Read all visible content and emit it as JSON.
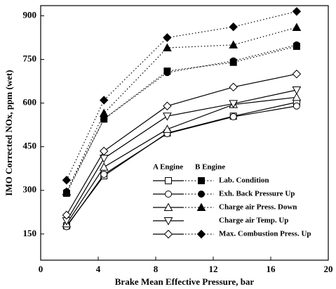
{
  "chart_data": {
    "type": "line",
    "x_label": "Brake Mean Effective Pressure, bar",
    "y_label": "IMO Corrected NOx, ppm (wet)",
    "x": [
      1.8,
      4.4,
      8.8,
      13.4,
      17.8
    ],
    "xlim": [
      0,
      20
    ],
    "xticks": [
      0,
      4,
      8,
      12,
      16,
      20
    ],
    "ylim": [
      60,
      935
    ],
    "yticks": [
      150,
      300,
      450,
      600,
      750,
      900
    ],
    "legend_headers": [
      "A Engine",
      "B Engine"
    ],
    "color": "#000000",
    "groups": [
      {
        "name": "Lab. Condition",
        "marker": "square",
        "A": [
          178,
          350,
          497,
          555,
          603
        ],
        "B": [
          290,
          545,
          710,
          740,
          795
        ]
      },
      {
        "name": "Exh. Back Pressure Up",
        "marker": "circle",
        "A": [
          175,
          355,
          495,
          553,
          590
        ],
        "B": [
          295,
          545,
          705,
          745,
          800
        ]
      },
      {
        "name": "Charge air Press. Down",
        "marker": "triangle",
        "A": [
          185,
          380,
          510,
          595,
          620
        ],
        "B": [
          295,
          565,
          790,
          800,
          860
        ]
      },
      {
        "name": "Charge air Temp. Up",
        "marker": "triangle-down",
        "A": [
          195,
          410,
          555,
          598,
          645
        ]
      },
      {
        "name": "Max. Combustion Press. Up",
        "marker": "diamond",
        "A": [
          215,
          435,
          590,
          655,
          700
        ],
        "B": [
          335,
          610,
          825,
          862,
          915
        ]
      }
    ]
  }
}
